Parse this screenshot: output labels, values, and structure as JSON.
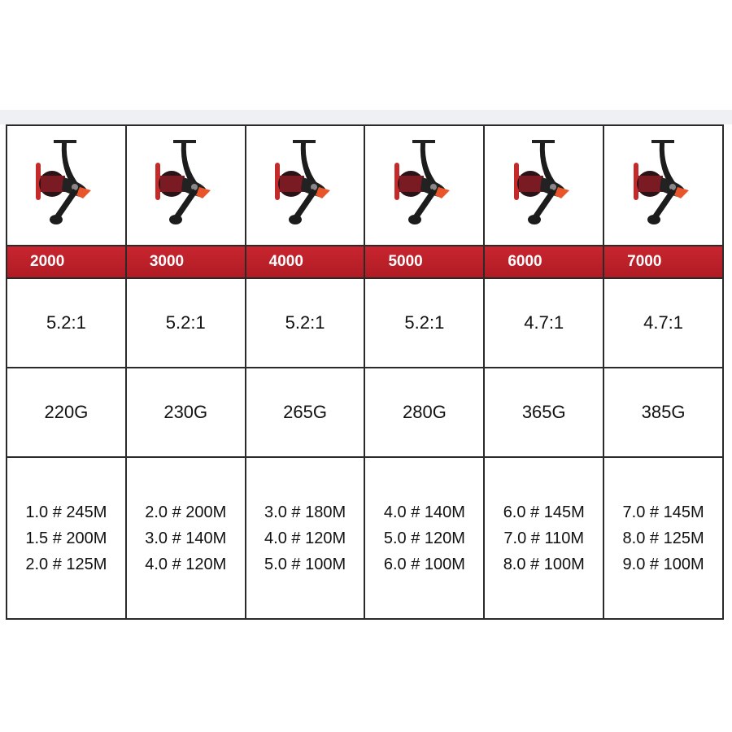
{
  "columns": [
    {
      "model": "2000",
      "ratio": "5.2:1",
      "weight": "220G",
      "line": [
        "1.0 # 245M",
        "1.5 # 200M",
        "2.0 # 125M"
      ]
    },
    {
      "model": "3000",
      "ratio": "5.2:1",
      "weight": "230G",
      "line": [
        "2.0 # 200M",
        "3.0 # 140M",
        "4.0 # 120M"
      ]
    },
    {
      "model": "4000",
      "ratio": "5.2:1",
      "weight": "265G",
      "line": [
        "3.0 # 180M",
        "4.0 # 120M",
        "5.0 # 100M"
      ]
    },
    {
      "model": "5000",
      "ratio": "5.2:1",
      "weight": "280G",
      "line": [
        "4.0 # 140M",
        "5.0 # 120M",
        "6.0 # 100M"
      ]
    },
    {
      "model": "6000",
      "ratio": "4.7:1",
      "weight": "365G",
      "line": [
        "6.0 # 145M",
        "7.0 # 110M",
        "8.0 # 100M"
      ]
    },
    {
      "model": "7000",
      "ratio": "4.7:1",
      "weight": "385G",
      "line": [
        "7.0 # 145M",
        "8.0 # 125M",
        "9.0 # 100M"
      ]
    }
  ],
  "colors": {
    "header_red": "#c0212b",
    "border": "#2a2a2a",
    "reel_accent": "#e8552a"
  },
  "icon": "spinning-reel-image"
}
